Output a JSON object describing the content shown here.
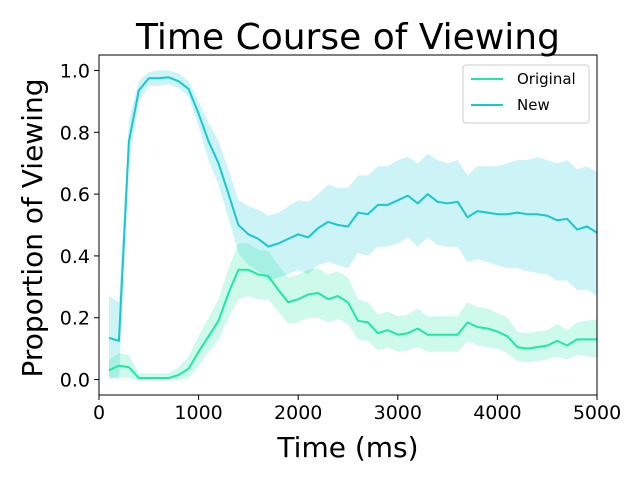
{
  "chart_data": {
    "type": "line",
    "title": "Time Course of Viewing",
    "xlabel": "Time (ms)",
    "ylabel": "Proportion of Viewing",
    "xlim": [
      0,
      5000
    ],
    "ylim": [
      -0.05,
      1.05
    ],
    "xticks": [
      0,
      1000,
      2000,
      3000,
      4000,
      5000
    ],
    "xtick_labels": [
      "0",
      "1000",
      "2000",
      "3000",
      "4000",
      "5000"
    ],
    "yticks": [
      0.0,
      0.2,
      0.4,
      0.6,
      0.8,
      1.0
    ],
    "ytick_labels": [
      "0.0",
      "0.2",
      "0.4",
      "0.6",
      "0.8",
      "1.0"
    ],
    "grid": false,
    "legend_position": "top-right",
    "x": [
      100,
      200,
      300,
      400,
      500,
      600,
      700,
      800,
      900,
      1000,
      1100,
      1200,
      1300,
      1400,
      1500,
      1600,
      1700,
      1800,
      1900,
      2000,
      2100,
      2200,
      2300,
      2400,
      2500,
      2600,
      2700,
      2800,
      2900,
      3000,
      3100,
      3200,
      3300,
      3400,
      3500,
      3600,
      3700,
      3800,
      3900,
      4000,
      4100,
      4200,
      4300,
      4400,
      4500,
      4600,
      4700,
      4800,
      4900,
      5000
    ],
    "series": [
      {
        "name": "Original",
        "color": "#1de9a0",
        "values": [
          0.03,
          0.045,
          0.04,
          0.005,
          0.005,
          0.005,
          0.005,
          0.015,
          0.035,
          0.09,
          0.14,
          0.19,
          0.28,
          0.355,
          0.355,
          0.34,
          0.335,
          0.29,
          0.25,
          0.26,
          0.275,
          0.28,
          0.26,
          0.27,
          0.25,
          0.19,
          0.185,
          0.15,
          0.16,
          0.145,
          0.15,
          0.165,
          0.145,
          0.145,
          0.145,
          0.145,
          0.185,
          0.17,
          0.165,
          0.155,
          0.14,
          0.105,
          0.1,
          0.105,
          0.11,
          0.125,
          0.11,
          0.13,
          0.13,
          0.13
        ],
        "lower": [
          0.0,
          0.01,
          0.005,
          0.0,
          0.0,
          0.0,
          0.0,
          0.0,
          0.005,
          0.045,
          0.09,
          0.13,
          0.2,
          0.26,
          0.27,
          0.26,
          0.26,
          0.22,
          0.18,
          0.185,
          0.2,
          0.2,
          0.185,
          0.195,
          0.18,
          0.13,
          0.125,
          0.095,
          0.105,
          0.09,
          0.095,
          0.105,
          0.09,
          0.09,
          0.09,
          0.09,
          0.125,
          0.11,
          0.105,
          0.1,
          0.085,
          0.06,
          0.055,
          0.06,
          0.065,
          0.075,
          0.065,
          0.08,
          0.075,
          0.07
        ],
        "upper": [
          0.065,
          0.085,
          0.08,
          0.02,
          0.02,
          0.02,
          0.02,
          0.04,
          0.075,
          0.14,
          0.2,
          0.26,
          0.36,
          0.44,
          0.44,
          0.42,
          0.415,
          0.37,
          0.33,
          0.34,
          0.355,
          0.36,
          0.34,
          0.35,
          0.33,
          0.26,
          0.25,
          0.21,
          0.22,
          0.205,
          0.21,
          0.23,
          0.205,
          0.205,
          0.205,
          0.205,
          0.25,
          0.235,
          0.23,
          0.215,
          0.2,
          0.155,
          0.15,
          0.155,
          0.16,
          0.18,
          0.16,
          0.185,
          0.19,
          0.195
        ]
      },
      {
        "name": "New",
        "color": "#17c7d1",
        "values": [
          0.135,
          0.125,
          0.77,
          0.935,
          0.975,
          0.975,
          0.978,
          0.965,
          0.94,
          0.86,
          0.77,
          0.7,
          0.6,
          0.5,
          0.47,
          0.455,
          0.43,
          0.44,
          0.455,
          0.47,
          0.46,
          0.49,
          0.51,
          0.5,
          0.495,
          0.54,
          0.535,
          0.565,
          0.565,
          0.58,
          0.595,
          0.57,
          0.6,
          0.575,
          0.57,
          0.575,
          0.525,
          0.545,
          0.54,
          0.535,
          0.535,
          0.54,
          0.535,
          0.535,
          0.53,
          0.515,
          0.52,
          0.485,
          0.495,
          0.475
        ],
        "lower": [
          0.01,
          0.0,
          0.7,
          0.9,
          0.95,
          0.95,
          0.955,
          0.945,
          0.915,
          0.82,
          0.71,
          0.63,
          0.52,
          0.41,
          0.37,
          0.35,
          0.32,
          0.33,
          0.34,
          0.355,
          0.34,
          0.37,
          0.38,
          0.37,
          0.36,
          0.41,
          0.4,
          0.43,
          0.43,
          0.44,
          0.46,
          0.43,
          0.46,
          0.435,
          0.43,
          0.43,
          0.38,
          0.39,
          0.38,
          0.37,
          0.36,
          0.36,
          0.35,
          0.345,
          0.34,
          0.32,
          0.32,
          0.29,
          0.29,
          0.27
        ],
        "upper": [
          0.27,
          0.25,
          0.84,
          0.965,
          0.995,
          1.0,
          1.0,
          0.99,
          0.965,
          0.9,
          0.83,
          0.77,
          0.68,
          0.58,
          0.56,
          0.55,
          0.53,
          0.54,
          0.56,
          0.58,
          0.575,
          0.6,
          0.63,
          0.62,
          0.62,
          0.66,
          0.66,
          0.69,
          0.69,
          0.71,
          0.72,
          0.7,
          0.73,
          0.71,
          0.7,
          0.71,
          0.66,
          0.69,
          0.69,
          0.69,
          0.7,
          0.71,
          0.71,
          0.72,
          0.71,
          0.7,
          0.71,
          0.68,
          0.69,
          0.67
        ]
      }
    ]
  }
}
